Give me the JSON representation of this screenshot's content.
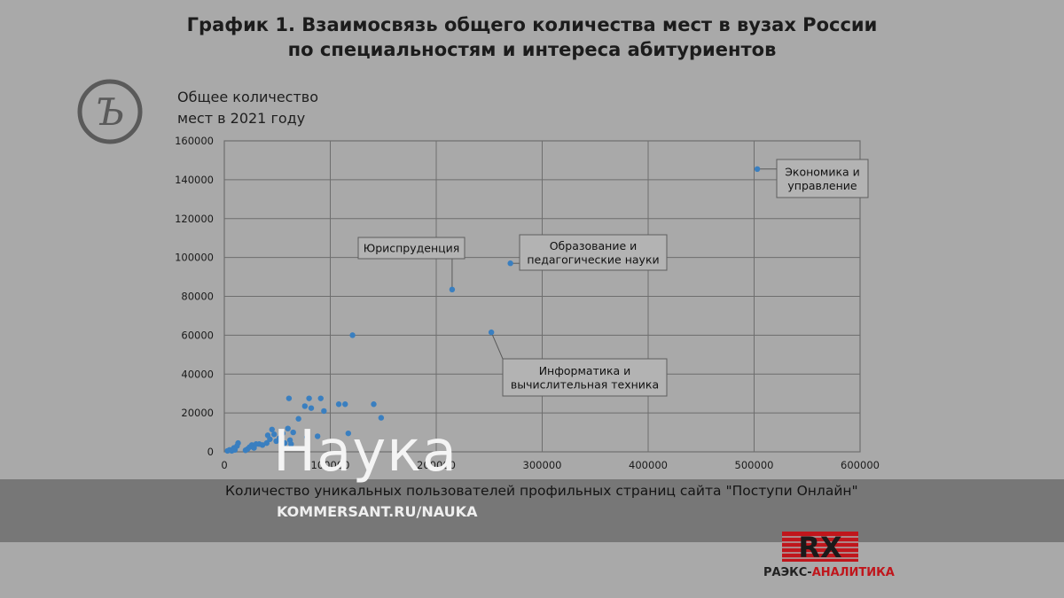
{
  "header": {
    "title_line1": "График 1. Взаимосвязь общего количества мест в вузах России",
    "title_line2": "по специальностям и интереса абитуриентов"
  },
  "colors": {
    "background": "#a9a9a9",
    "point": "#3a7fc0",
    "grid": "#6e6e6e",
    "callout_bg": "#b3b3b3",
    "brand_red": "#c0161c"
  },
  "chart_data": {
    "type": "scatter",
    "title": "График 1. Взаимосвязь общего количества мест в вузах России по специальностям и интереса абитуриентов",
    "ylabel_line1": "Общее количество",
    "ylabel_line2": "мест в 2021 году",
    "xlabel": "Количество уникальных пользователей профильных страниц сайта \"Поступи Онлайн\"",
    "xlim": [
      0,
      600000
    ],
    "ylim": [
      0,
      160000
    ],
    "x_ticks": [
      0,
      100000,
      200000,
      300000,
      400000,
      500000,
      600000
    ],
    "y_ticks": [
      0,
      20000,
      40000,
      60000,
      80000,
      100000,
      120000,
      140000,
      160000
    ],
    "grid": true,
    "points": [
      {
        "x": 3000,
        "y": 500
      },
      {
        "x": 5000,
        "y": 1000
      },
      {
        "x": 7000,
        "y": 500
      },
      {
        "x": 9000,
        "y": 2000
      },
      {
        "x": 10000,
        "y": 1000
      },
      {
        "x": 12000,
        "y": 3000
      },
      {
        "x": 13000,
        "y": 4500
      },
      {
        "x": 20000,
        "y": 800
      },
      {
        "x": 22000,
        "y": 1500
      },
      {
        "x": 24000,
        "y": 2500
      },
      {
        "x": 26000,
        "y": 3500
      },
      {
        "x": 28000,
        "y": 2000
      },
      {
        "x": 30000,
        "y": 4000
      },
      {
        "x": 33000,
        "y": 4000
      },
      {
        "x": 36000,
        "y": 3500
      },
      {
        "x": 40000,
        "y": 4500
      },
      {
        "x": 41000,
        "y": 8500
      },
      {
        "x": 43000,
        "y": 6500
      },
      {
        "x": 45000,
        "y": 11500
      },
      {
        "x": 47000,
        "y": 9000
      },
      {
        "x": 49000,
        "y": 5500
      },
      {
        "x": 52000,
        "y": 7000
      },
      {
        "x": 55000,
        "y": 9500
      },
      {
        "x": 57000,
        "y": 4500
      },
      {
        "x": 60000,
        "y": 12000
      },
      {
        "x": 61000,
        "y": 27500
      },
      {
        "x": 62000,
        "y": 6000
      },
      {
        "x": 63000,
        "y": 4000
      },
      {
        "x": 65000,
        "y": 10000
      },
      {
        "x": 70000,
        "y": 17000
      },
      {
        "x": 76000,
        "y": 23500
      },
      {
        "x": 78000,
        "y": 7500
      },
      {
        "x": 80000,
        "y": 27500
      },
      {
        "x": 82000,
        "y": 22500
      },
      {
        "x": 88000,
        "y": 8000
      },
      {
        "x": 91000,
        "y": 27500
      },
      {
        "x": 94000,
        "y": 21000
      },
      {
        "x": 108000,
        "y": 24500
      },
      {
        "x": 114000,
        "y": 24500
      },
      {
        "x": 117000,
        "y": 9500
      },
      {
        "x": 121000,
        "y": 60000
      },
      {
        "x": 141000,
        "y": 24500
      },
      {
        "x": 148000,
        "y": 17500
      },
      {
        "x": 215000,
        "y": 83500,
        "label": "Юриспруденция"
      },
      {
        "x": 270000,
        "y": 97000,
        "label": "Образование и педагогические науки"
      },
      {
        "x": 252000,
        "y": 61500,
        "label": "Информатика и вычислительная техника"
      },
      {
        "x": 503000,
        "y": 145500,
        "label": "Экономика и управление"
      }
    ],
    "callouts": [
      {
        "key": "law",
        "lines": [
          "Юриспруденция"
        ]
      },
      {
        "key": "edu",
        "lines": [
          "Образование и",
          "педагогические науки"
        ]
      },
      {
        "key": "cs",
        "lines": [
          "Информатика и",
          "вычислительная техника"
        ]
      },
      {
        "key": "econ",
        "lines": [
          "Экономика и",
          "управление"
        ]
      }
    ]
  },
  "watermark": {
    "text": "Наука"
  },
  "source": {
    "text": "KOMMERSANT.RU/NAUKA"
  },
  "brand": {
    "mark": "RX",
    "name_part1": "РАЭКС-",
    "name_part2": "АНАЛИТИКА"
  }
}
